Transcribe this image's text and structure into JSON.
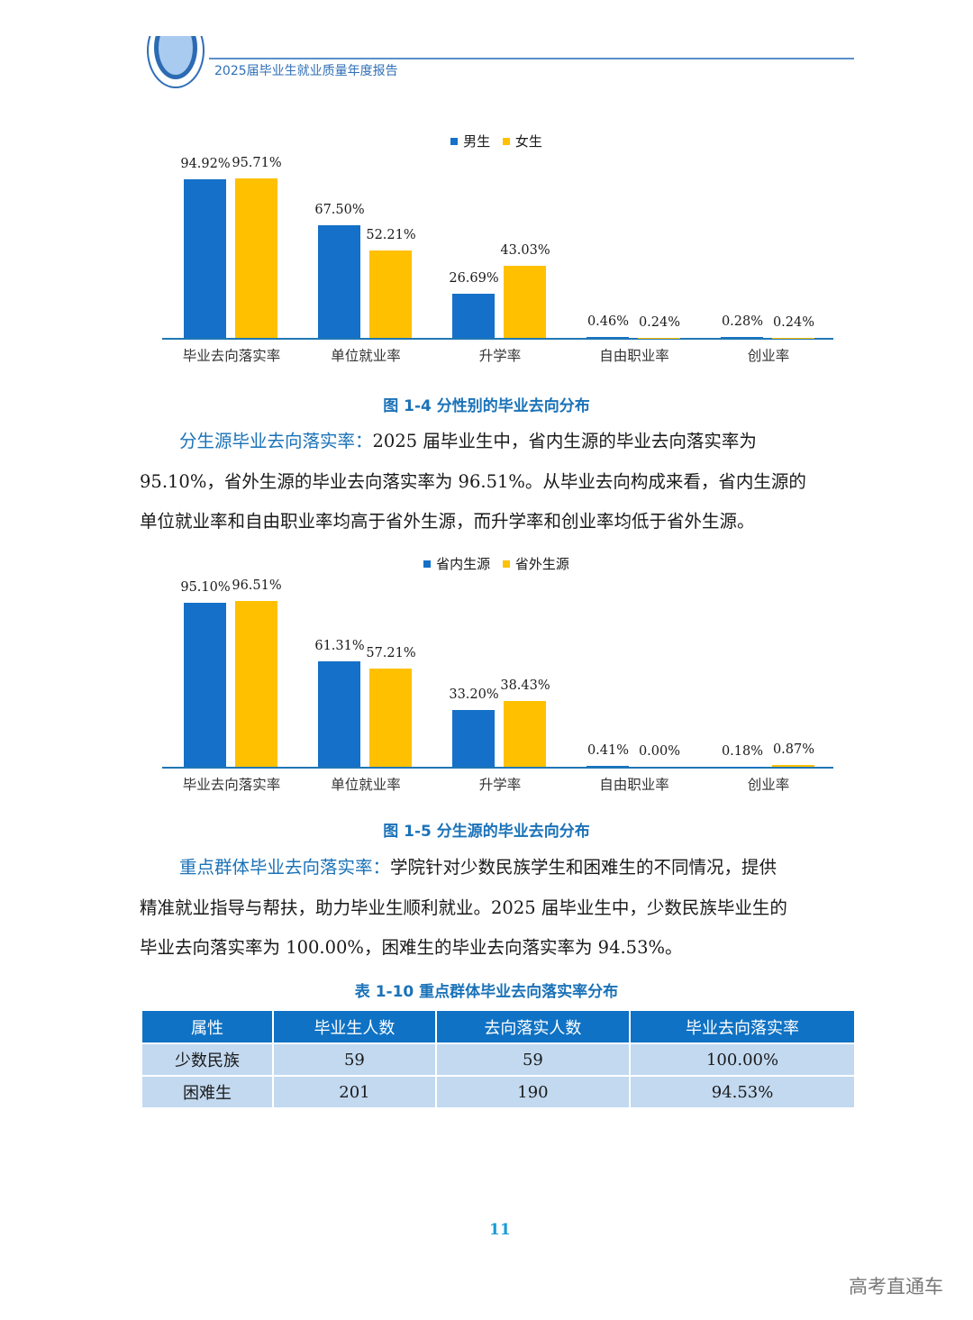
{
  "header": {
    "title": "2025届毕业生就业质量年度报告"
  },
  "figure1": {
    "caption": "图 1-4  分性别的毕业去向分布",
    "legend": [
      "男生",
      "女生"
    ],
    "categories": [
      "毕业去向落实率",
      "单位就业率",
      "升学率",
      "自由职业率",
      "创业率"
    ],
    "labels_a": [
      "94.92%",
      "67.50%",
      "26.69%",
      "0.46%",
      "0.28%"
    ],
    "labels_b": [
      "95.71%",
      "52.21%",
      "43.03%",
      "0.24%",
      "0.24%"
    ]
  },
  "para1": {
    "lead": "分生源毕业去向落实率：",
    "line1": "2025 届毕业生中，省内生源的毕业去向落实率为",
    "line2": "95.10%，省外生源的毕业去向落实率为 96.51%。从毕业去向构成来看，省内生源的",
    "line3": "单位就业率和自由职业率均高于省外生源，而升学率和创业率均低于省外生源。"
  },
  "figure2": {
    "caption": "图 1-5  分生源的毕业去向分布",
    "legend": [
      "省内生源",
      "省外生源"
    ],
    "categories": [
      "毕业去向落实率",
      "单位就业率",
      "升学率",
      "自由职业率",
      "创业率"
    ],
    "labels_a": [
      "95.10%",
      "61.31%",
      "33.20%",
      "0.41%",
      "0.18%"
    ],
    "labels_b": [
      "96.51%",
      "57.21%",
      "38.43%",
      "0.00%",
      "0.87%"
    ]
  },
  "para2": {
    "lead": "重点群体毕业去向落实率：",
    "line1": "学院针对少数民族学生和困难生的不同情况，提供",
    "line2": "精准就业指导与帮扶，助力毕业生顺利就业。2025 届毕业生中，少数民族毕业生的",
    "line3": "毕业去向落实率为 100.00%，困难生的毕业去向落实率为 94.53%。"
  },
  "table": {
    "caption": "表 1-10  重点群体毕业去向落实率分布",
    "headers": [
      "属性",
      "毕业生人数",
      "去向落实人数",
      "毕业去向落实率"
    ],
    "rows": [
      [
        "少数民族",
        "59",
        "59",
        "100.00%"
      ],
      [
        "困难生",
        "201",
        "190",
        "94.53%"
      ]
    ]
  },
  "page_number": "11",
  "watermark": "高考直通车",
  "colors": {
    "series_a": "#1470c8",
    "series_b": "#ffc000",
    "accent": "#1a72b8",
    "table_header": "#0f72c4",
    "table_cell": "#c2d9f0"
  },
  "chart_data": [
    {
      "type": "bar",
      "title": "图 1-4 分性别的毕业去向分布",
      "categories": [
        "毕业去向落实率",
        "单位就业率",
        "升学率",
        "自由职业率",
        "创业率"
      ],
      "series": [
        {
          "name": "男生",
          "values": [
            94.92,
            67.5,
            26.69,
            0.46,
            0.28
          ]
        },
        {
          "name": "女生",
          "values": [
            95.71,
            52.21,
            43.03,
            0.24,
            0.24
          ]
        }
      ],
      "xlabel": "",
      "ylabel": "",
      "ylim": [
        0,
        100
      ],
      "grid": false,
      "legend_position": "top"
    },
    {
      "type": "bar",
      "title": "图 1-5 分生源的毕业去向分布",
      "categories": [
        "毕业去向落实率",
        "单位就业率",
        "升学率",
        "自由职业率",
        "创业率"
      ],
      "series": [
        {
          "name": "省内生源",
          "values": [
            95.1,
            61.31,
            33.2,
            0.41,
            0.18
          ]
        },
        {
          "name": "省外生源",
          "values": [
            96.51,
            57.21,
            38.43,
            0.0,
            0.87
          ]
        }
      ],
      "xlabel": "",
      "ylabel": "",
      "ylim": [
        0,
        100
      ],
      "grid": false,
      "legend_position": "top"
    }
  ]
}
